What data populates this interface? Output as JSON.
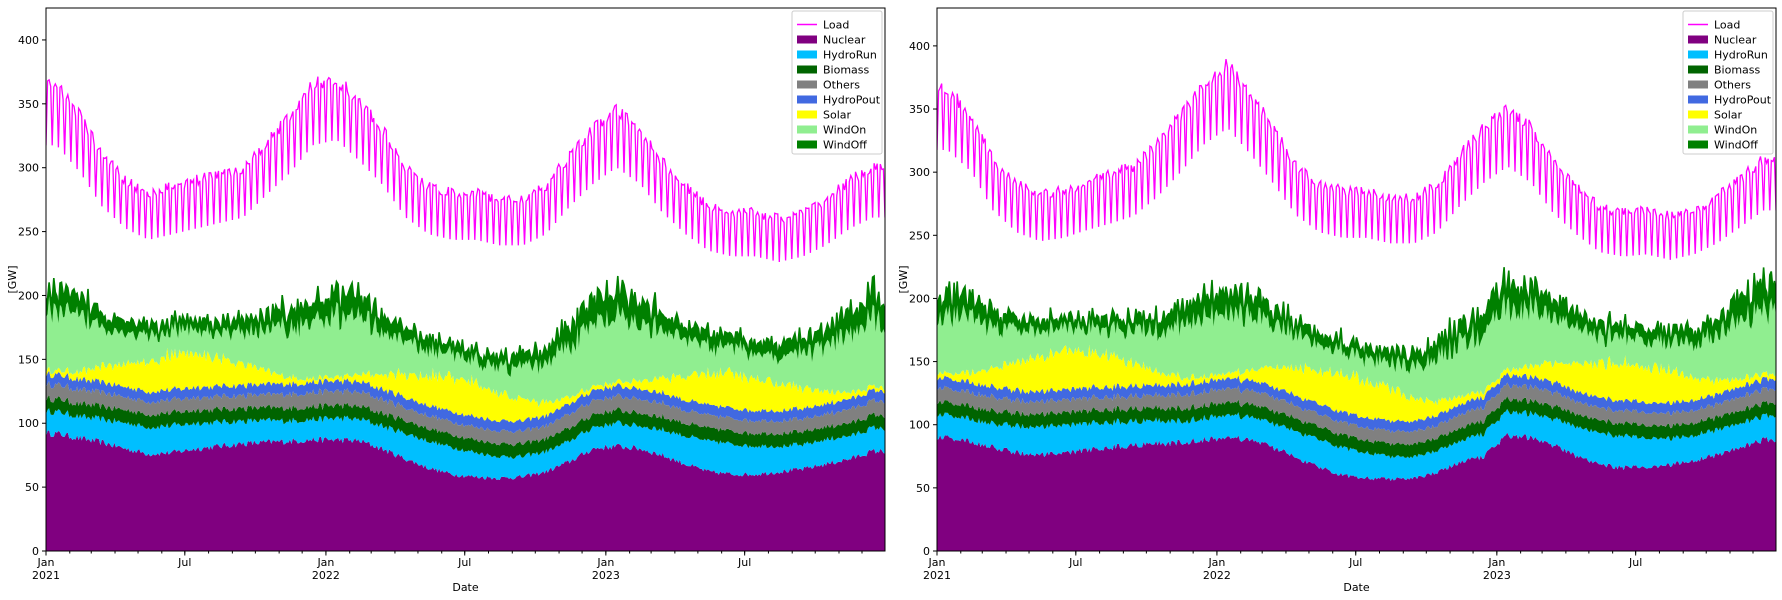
{
  "chart_data": [
    {
      "type": "area",
      "title": "",
      "xlabel": "Date",
      "ylabel": "[GW]",
      "xlim": [
        "2021-01-01",
        "2023-12-31"
      ],
      "ylim": [
        0,
        425
      ],
      "grid": false,
      "legend_position": "top-right",
      "y_ticks": [
        0,
        50,
        100,
        150,
        200,
        250,
        300,
        350,
        400
      ],
      "x_ticks": [
        {
          "date": "2021-01-01",
          "label": "Jan",
          "sublabel": "2021"
        },
        {
          "date": "2021-07-01",
          "label": "Jul",
          "sublabel": ""
        },
        {
          "date": "2022-01-01",
          "label": "Jan",
          "sublabel": "2022"
        },
        {
          "date": "2022-07-01",
          "label": "Jul",
          "sublabel": ""
        },
        {
          "date": "2023-01-01",
          "label": "Jan",
          "sublabel": "2023"
        },
        {
          "date": "2023-07-01",
          "label": "Jul",
          "sublabel": ""
        }
      ],
      "x": [
        "2021-01-15",
        "2021-02-15",
        "2021-03-15",
        "2021-04-15",
        "2021-05-15",
        "2021-06-15",
        "2021-07-15",
        "2021-08-15",
        "2021-09-15",
        "2021-10-15",
        "2021-11-15",
        "2021-12-15",
        "2022-01-15",
        "2022-02-15",
        "2022-03-15",
        "2022-04-15",
        "2022-05-15",
        "2022-06-15",
        "2022-07-15",
        "2022-08-15",
        "2022-09-15",
        "2022-10-15",
        "2022-11-15",
        "2022-12-15",
        "2023-01-15",
        "2023-02-15",
        "2023-03-15",
        "2023-04-15",
        "2023-05-15",
        "2023-06-15",
        "2023-07-15",
        "2023-08-15",
        "2023-09-15",
        "2023-10-15",
        "2023-11-15",
        "2023-12-15"
      ],
      "line": {
        "name": "Load",
        "color": "#ff00ff",
        "values": [
          365,
          340,
          310,
          290,
          280,
          285,
          290,
          295,
          300,
          320,
          340,
          365,
          370,
          350,
          330,
          300,
          285,
          280,
          280,
          275,
          275,
          285,
          310,
          330,
          345,
          330,
          305,
          285,
          270,
          265,
          265,
          260,
          265,
          275,
          290,
          300
        ]
      },
      "series": [
        {
          "name": "Nuclear",
          "color": "#800080",
          "values": [
            92,
            88,
            85,
            80,
            76,
            77,
            80,
            82,
            84,
            85,
            86,
            87,
            87,
            86,
            80,
            72,
            65,
            60,
            58,
            57,
            58,
            62,
            70,
            80,
            82,
            80,
            75,
            68,
            62,
            60,
            60,
            62,
            64,
            68,
            72,
            78
          ]
        },
        {
          "name": "HydroRun",
          "color": "#00bfff",
          "values": [
            17,
            17,
            18,
            20,
            21,
            21,
            20,
            19,
            18,
            17,
            16,
            16,
            17,
            17,
            18,
            20,
            21,
            21,
            19,
            17,
            16,
            16,
            16,
            17,
            18,
            18,
            20,
            22,
            24,
            24,
            22,
            20,
            19,
            19,
            18,
            18
          ]
        },
        {
          "name": "Biomass",
          "color": "#006400",
          "values": [
            10,
            10,
            10,
            10,
            10,
            10,
            10,
            10,
            10,
            10,
            10,
            10,
            10,
            10,
            10,
            10,
            10,
            10,
            10,
            10,
            10,
            10,
            10,
            10,
            10,
            10,
            10,
            10,
            10,
            10,
            10,
            10,
            10,
            10,
            10,
            10
          ]
        },
        {
          "name": "Others",
          "color": "#808080",
          "values": [
            11,
            11,
            11,
            10,
            10,
            10,
            10,
            10,
            10,
            10,
            11,
            11,
            11,
            11,
            11,
            10,
            10,
            10,
            10,
            10,
            10,
            10,
            11,
            11,
            11,
            11,
            11,
            10,
            10,
            10,
            10,
            10,
            10,
            10,
            11,
            11
          ]
        },
        {
          "name": "HydroPout",
          "color": "#4169e1",
          "values": [
            8,
            8,
            8,
            8,
            8,
            8,
            8,
            8,
            8,
            8,
            8,
            8,
            8,
            8,
            8,
            8,
            8,
            8,
            8,
            8,
            8,
            8,
            8,
            8,
            8,
            8,
            8,
            8,
            8,
            8,
            8,
            8,
            8,
            8,
            8,
            8
          ]
        },
        {
          "name": "Solar",
          "color": "#ffff00",
          "values": [
            3,
            6,
            12,
            18,
            24,
            27,
            26,
            22,
            16,
            10,
            5,
            3,
            3,
            6,
            12,
            18,
            24,
            27,
            26,
            22,
            16,
            10,
            5,
            3,
            3,
            6,
            12,
            18,
            24,
            27,
            26,
            22,
            16,
            10,
            5,
            3
          ]
        },
        {
          "name": "WindOn",
          "color": "#90ee90",
          "values": [
            45,
            42,
            32,
            25,
            20,
            18,
            18,
            20,
            25,
            32,
            40,
            45,
            48,
            44,
            35,
            26,
            20,
            18,
            18,
            20,
            25,
            32,
            42,
            48,
            50,
            45,
            36,
            28,
            22,
            20,
            20,
            22,
            28,
            35,
            45,
            52
          ]
        },
        {
          "name": "WindOff",
          "color": "#008000",
          "values": [
            15,
            14,
            11,
            9,
            8,
            7,
            7,
            8,
            9,
            11,
            14,
            16,
            17,
            15,
            12,
            9,
            8,
            7,
            7,
            8,
            9,
            11,
            14,
            17,
            18,
            16,
            13,
            10,
            9,
            8,
            8,
            9,
            10,
            12,
            16,
            18
          ]
        }
      ]
    },
    {
      "type": "area",
      "title": "",
      "xlabel": "Date",
      "ylabel": "[GW]",
      "xlim": [
        "2021-01-01",
        "2023-12-31"
      ],
      "ylim": [
        0,
        430
      ],
      "grid": false,
      "legend_position": "top-right",
      "y_ticks": [
        0,
        50,
        100,
        150,
        200,
        250,
        300,
        350,
        400
      ],
      "x_ticks": [
        {
          "date": "2021-01-01",
          "label": "Jan",
          "sublabel": "2021"
        },
        {
          "date": "2021-07-01",
          "label": "Jul",
          "sublabel": ""
        },
        {
          "date": "2022-01-01",
          "label": "Jan",
          "sublabel": "2022"
        },
        {
          "date": "2022-07-01",
          "label": "Jul",
          "sublabel": ""
        },
        {
          "date": "2023-01-01",
          "label": "Jan",
          "sublabel": "2023"
        },
        {
          "date": "2023-07-01",
          "label": "Jul",
          "sublabel": ""
        }
      ],
      "x": [
        "2021-01-15",
        "2021-02-15",
        "2021-03-15",
        "2021-04-15",
        "2021-05-15",
        "2021-06-15",
        "2021-07-15",
        "2021-08-15",
        "2021-09-15",
        "2021-10-15",
        "2021-11-15",
        "2021-12-15",
        "2022-01-15",
        "2022-02-15",
        "2022-03-15",
        "2022-04-15",
        "2022-05-15",
        "2022-06-15",
        "2022-07-15",
        "2022-08-15",
        "2022-09-15",
        "2022-10-15",
        "2022-11-15",
        "2022-12-15",
        "2023-01-15",
        "2023-02-15",
        "2023-03-15",
        "2023-04-15",
        "2023-05-15",
        "2023-06-15",
        "2023-07-15",
        "2023-08-15",
        "2023-09-15",
        "2023-10-15",
        "2023-11-15",
        "2023-12-15"
      ],
      "line": {
        "name": "Load",
        "color": "#ff00ff",
        "values": [
          365,
          345,
          310,
          290,
          282,
          285,
          292,
          298,
          305,
          322,
          345,
          370,
          385,
          360,
          335,
          305,
          290,
          285,
          285,
          280,
          280,
          290,
          315,
          335,
          350,
          335,
          308,
          288,
          272,
          268,
          270,
          265,
          270,
          280,
          295,
          310
        ]
      },
      "series": [
        {
          "name": "Nuclear",
          "color": "#800080",
          "values": [
            90,
            86,
            82,
            78,
            76,
            77,
            80,
            82,
            84,
            85,
            86,
            88,
            90,
            88,
            82,
            74,
            66,
            60,
            58,
            57,
            58,
            62,
            70,
            75,
            92,
            90,
            84,
            75,
            68,
            66,
            66,
            68,
            72,
            76,
            82,
            88
          ]
        },
        {
          "name": "HydroRun",
          "color": "#00bfff",
          "values": [
            18,
            18,
            19,
            21,
            22,
            22,
            21,
            20,
            19,
            18,
            17,
            17,
            18,
            18,
            19,
            21,
            22,
            22,
            20,
            18,
            17,
            17,
            17,
            18,
            19,
            19,
            21,
            23,
            25,
            25,
            23,
            21,
            20,
            20,
            19,
            19
          ]
        },
        {
          "name": "Biomass",
          "color": "#006400",
          "values": [
            10,
            10,
            10,
            10,
            10,
            10,
            10,
            10,
            10,
            10,
            10,
            10,
            10,
            10,
            10,
            10,
            10,
            10,
            10,
            10,
            10,
            10,
            10,
            10,
            10,
            10,
            10,
            10,
            10,
            10,
            10,
            10,
            10,
            10,
            10,
            10
          ]
        },
        {
          "name": "Others",
          "color": "#808080",
          "values": [
            11,
            11,
            11,
            10,
            10,
            10,
            10,
            10,
            10,
            10,
            11,
            11,
            11,
            11,
            11,
            10,
            10,
            10,
            10,
            10,
            10,
            10,
            11,
            11,
            11,
            11,
            11,
            10,
            10,
            10,
            10,
            10,
            10,
            10,
            11,
            11
          ]
        },
        {
          "name": "HydroPout",
          "color": "#4169e1",
          "values": [
            8,
            8,
            8,
            8,
            8,
            8,
            8,
            8,
            8,
            8,
            8,
            8,
            8,
            8,
            8,
            8,
            8,
            8,
            8,
            8,
            8,
            8,
            8,
            8,
            8,
            8,
            8,
            8,
            8,
            8,
            8,
            8,
            8,
            8,
            8,
            8
          ]
        },
        {
          "name": "Solar",
          "color": "#ffff00",
          "values": [
            4,
            8,
            15,
            22,
            27,
            30,
            29,
            25,
            18,
            11,
            6,
            4,
            4,
            8,
            15,
            22,
            27,
            30,
            29,
            25,
            18,
            11,
            6,
            4,
            4,
            8,
            15,
            22,
            27,
            30,
            29,
            25,
            18,
            11,
            6,
            4
          ]
        },
        {
          "name": "WindOn",
          "color": "#90ee90",
          "values": [
            46,
            43,
            33,
            26,
            21,
            19,
            19,
            21,
            26,
            33,
            41,
            46,
            49,
            45,
            36,
            27,
            21,
            19,
            19,
            21,
            26,
            33,
            43,
            49,
            50,
            46,
            37,
            29,
            23,
            21,
            21,
            23,
            29,
            36,
            46,
            52
          ]
        },
        {
          "name": "WindOff",
          "color": "#008000",
          "values": [
            15,
            14,
            11,
            9,
            8,
            7,
            7,
            8,
            9,
            11,
            14,
            16,
            17,
            15,
            12,
            9,
            8,
            7,
            7,
            8,
            9,
            11,
            14,
            17,
            18,
            16,
            13,
            10,
            9,
            8,
            8,
            9,
            10,
            12,
            16,
            18
          ]
        }
      ]
    }
  ]
}
